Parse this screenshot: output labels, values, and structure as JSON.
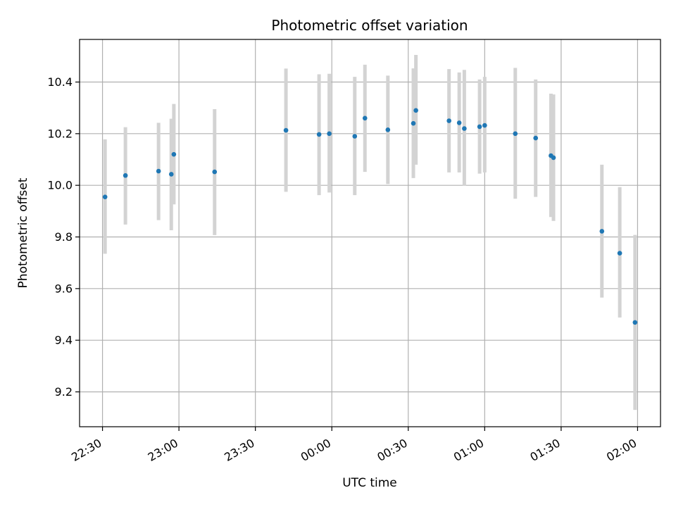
{
  "chart_data": {
    "type": "scatter",
    "title": "Photometric offset variation",
    "xlabel": "UTC time",
    "ylabel": "Photometric offset",
    "xlim": [
      "22:21",
      "02:09"
    ],
    "ylim": [
      9.065,
      10.565
    ],
    "grid": true,
    "x_ticks": [
      "22:30",
      "23:00",
      "23:30",
      "00:00",
      "00:30",
      "01:00",
      "01:30",
      "02:00"
    ],
    "y_ticks": [
      9.2,
      9.4,
      9.6,
      9.8,
      10.0,
      10.2,
      10.4
    ],
    "colors": {
      "point": "#1f77b4",
      "errorbar": "#d3d3d3",
      "grid": "#b0b0b0"
    },
    "series": [
      {
        "x": [
          "22:31",
          "22:39",
          "22:52",
          "22:57",
          "22:58",
          "23:14",
          "23:42",
          "23:55",
          "23:59",
          "00:09",
          "00:13",
          "00:22",
          "00:32",
          "00:33",
          "00:46",
          "00:50",
          "00:52",
          "00:58",
          "01:00",
          "01:12",
          "01:20",
          "01:26",
          "01:27",
          "01:46",
          "01:53",
          "01:59"
        ],
        "y": [
          9.955,
          10.038,
          10.055,
          10.043,
          10.12,
          10.052,
          10.213,
          10.197,
          10.2,
          10.19,
          10.26,
          10.215,
          10.24,
          10.29,
          10.25,
          10.242,
          10.22,
          10.227,
          10.232,
          10.2,
          10.183,
          10.115,
          10.107,
          9.822,
          9.737,
          9.469
        ],
        "yerr_low": [
          9.735,
          9.848,
          9.865,
          9.826,
          9.926,
          9.807,
          9.975,
          9.962,
          9.972,
          9.962,
          10.052,
          10.005,
          10.028,
          10.08,
          10.05,
          10.05,
          9.998,
          10.045,
          10.05,
          9.948,
          9.955,
          9.877,
          9.862,
          9.565,
          9.488,
          9.13
        ],
        "yerr_high": [
          10.178,
          10.225,
          10.242,
          10.258,
          10.315,
          10.295,
          10.452,
          10.43,
          10.432,
          10.42,
          10.467,
          10.425,
          10.453,
          10.505,
          10.45,
          10.437,
          10.447,
          10.41,
          10.42,
          10.455,
          10.41,
          10.355,
          10.352,
          10.08,
          9.993,
          9.808
        ]
      }
    ]
  }
}
